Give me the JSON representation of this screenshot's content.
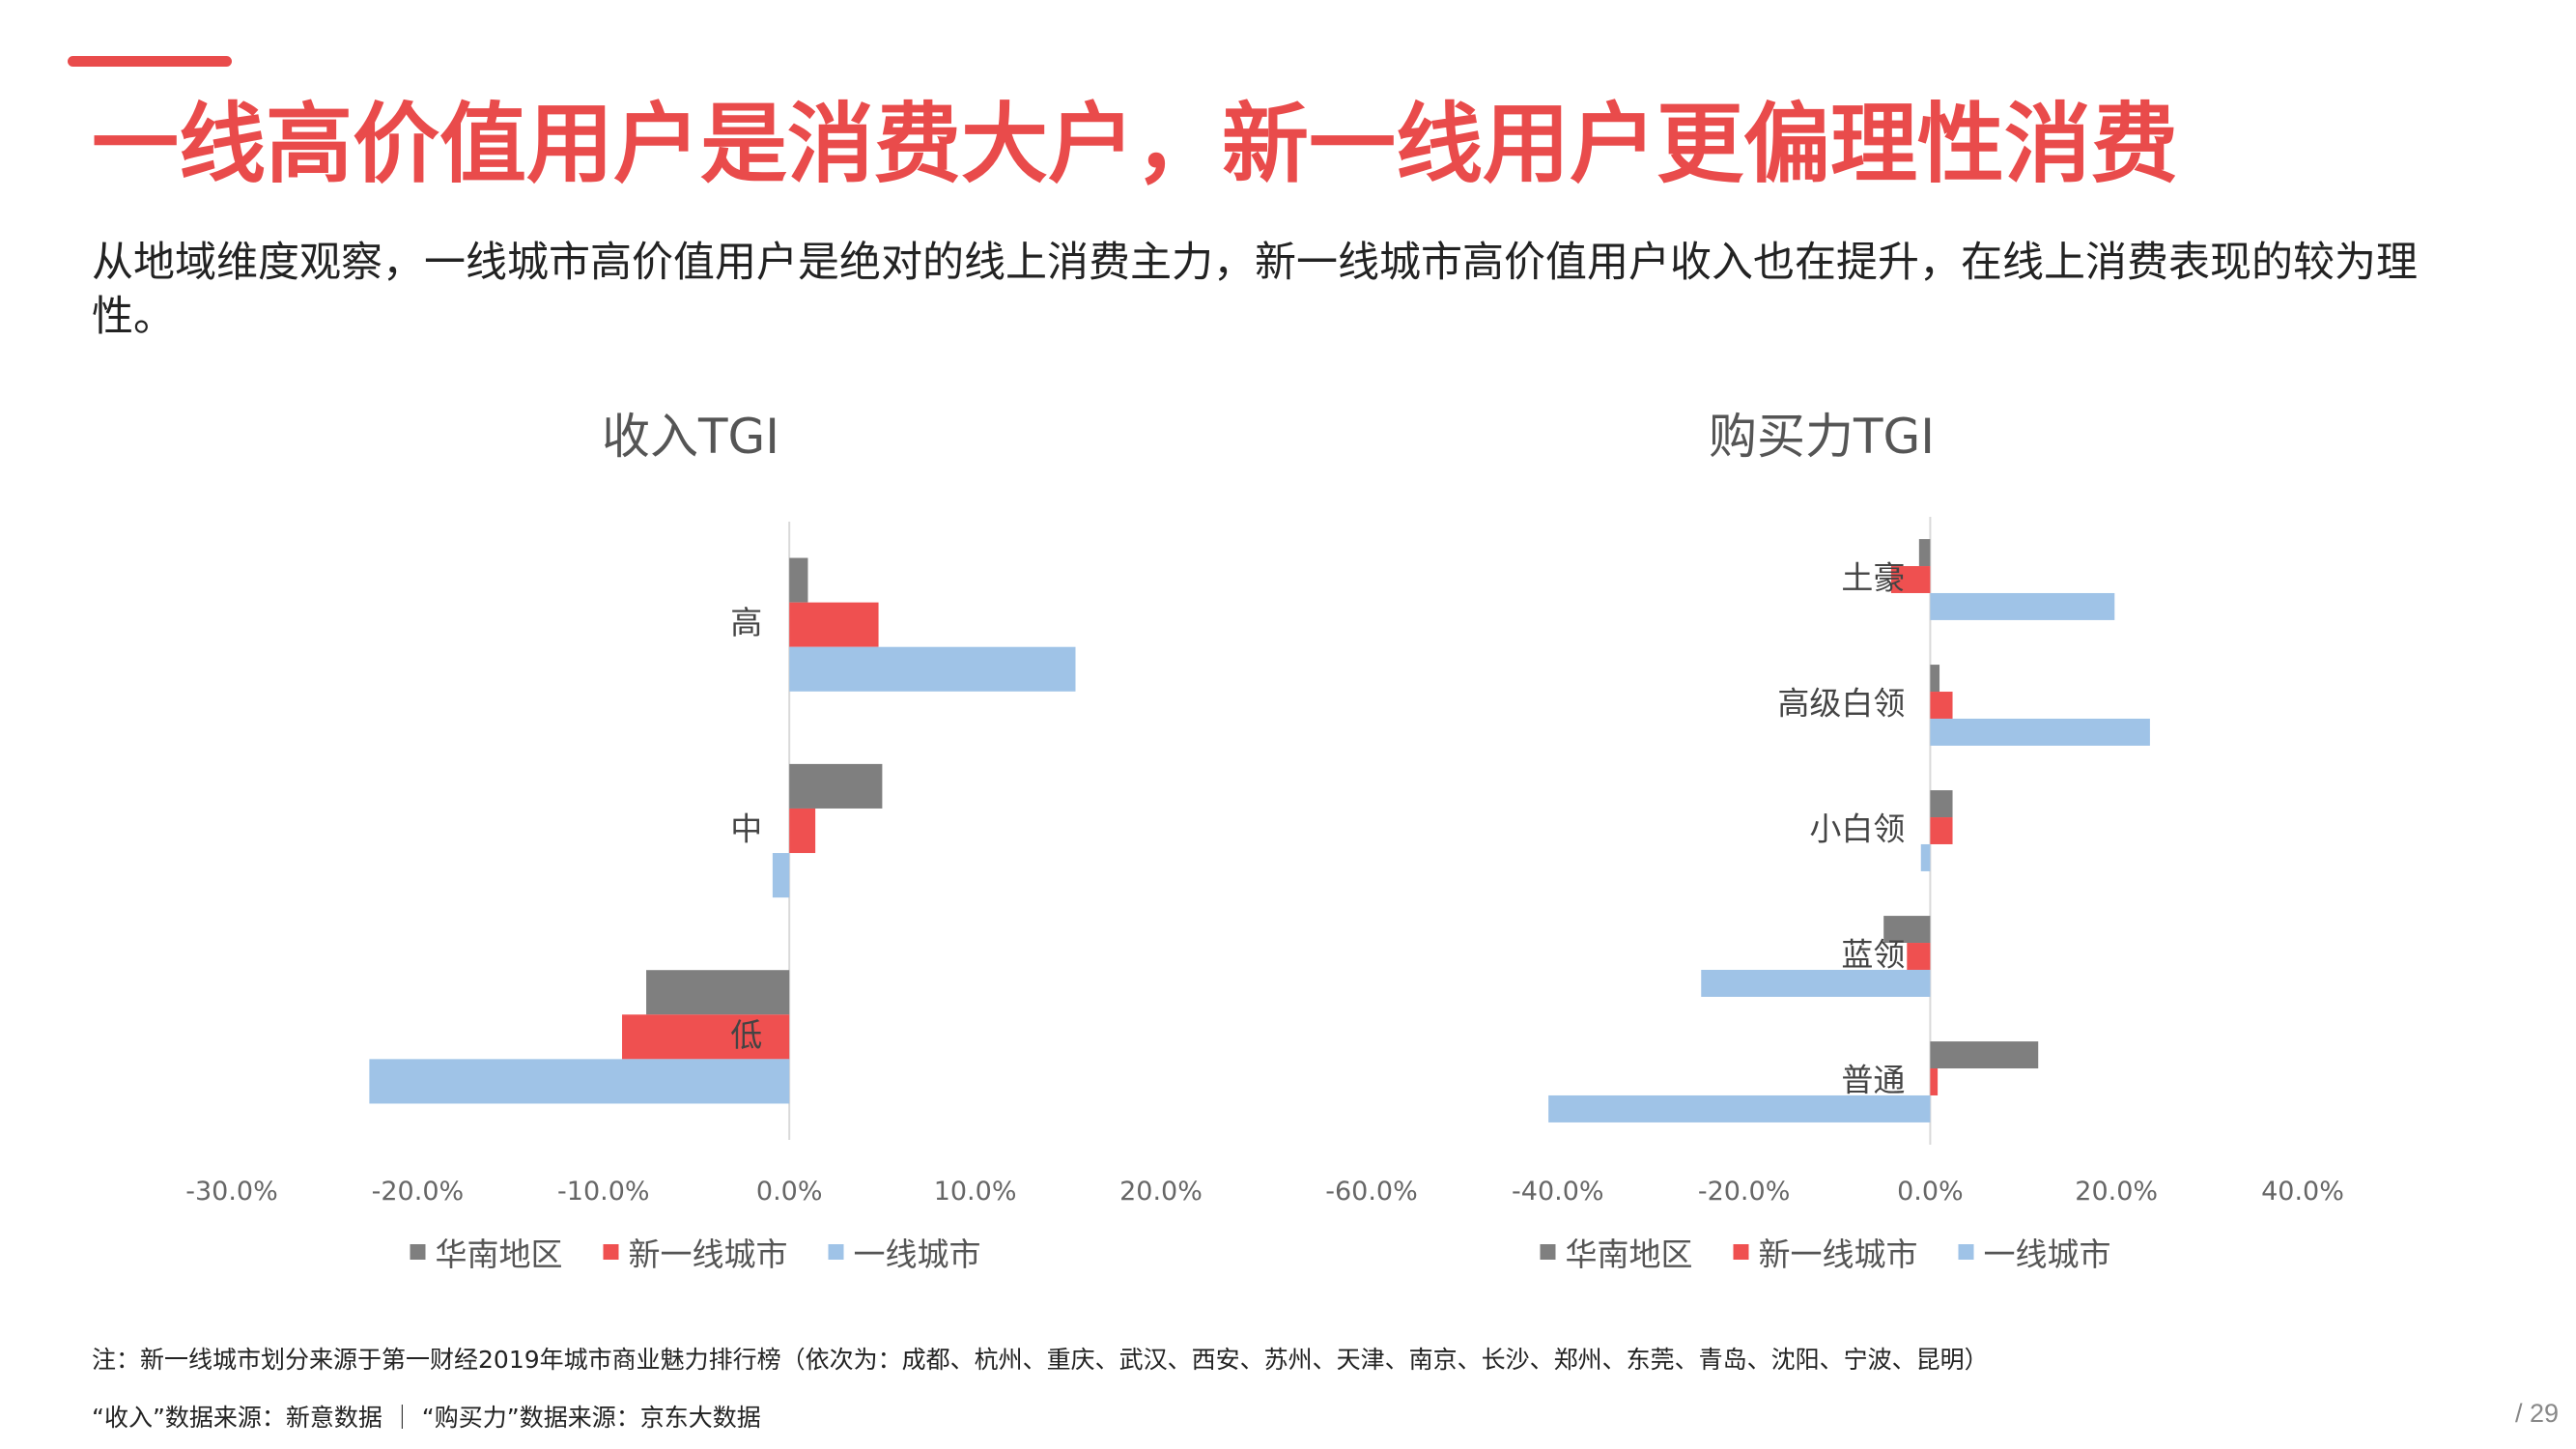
{
  "header": {
    "title": "一线高价值用户是消费大户，新一线用户更偏理性消费",
    "subtitle": "从地域维度观察，一线城市高价值用户是绝对的线上消费主力，新一线城市高价值用户收入也在提升，在线上消费表现的较为理性。"
  },
  "colors": {
    "accent": "#e94b4b",
    "huanan": "#7f7f7f",
    "xinyixian": "#ef5050",
    "yixian": "#9fc3e7"
  },
  "chart_data": [
    {
      "type": "bar",
      "orientation": "horizontal",
      "title": "收入TGI",
      "categories": [
        "高",
        "中",
        "低"
      ],
      "series": [
        {
          "name": "华南地区",
          "values": [
            1.0,
            5.0,
            -7.7
          ]
        },
        {
          "name": "新一线城市",
          "values": [
            4.8,
            1.4,
            -9.0
          ]
        },
        {
          "name": "一线城市",
          "values": [
            15.4,
            -0.9,
            -22.6
          ]
        }
      ],
      "xlim": [
        -30,
        20
      ],
      "ticks": [
        "-30.0%",
        "-20.0%",
        "-10.0%",
        "0.0%",
        "10.0%",
        "20.0%"
      ],
      "tick_values": [
        -30,
        -20,
        -10,
        0,
        10,
        20
      ],
      "legend": [
        "华南地区",
        "新一线城市",
        "一线城市"
      ],
      "legend_position": "bottom"
    },
    {
      "type": "bar",
      "orientation": "horizontal",
      "title": "购买力TGI",
      "categories": [
        "土豪",
        "高级白领",
        "小白领",
        "蓝领",
        "普通"
      ],
      "series": [
        {
          "name": "华南地区",
          "values": [
            -1.2,
            1.0,
            2.4,
            -5.0,
            11.6
          ]
        },
        {
          "name": "新一线城市",
          "values": [
            -4.2,
            2.4,
            2.4,
            -2.5,
            0.8
          ]
        },
        {
          "name": "一线城市",
          "values": [
            19.8,
            23.6,
            -1.0,
            -24.6,
            -41.0
          ]
        }
      ],
      "xlim": [
        -60,
        40
      ],
      "ticks": [
        "-60.0%",
        "-40.0%",
        "-20.0%",
        "0.0%",
        "20.0%",
        "40.0%"
      ],
      "tick_values": [
        -60,
        -40,
        -20,
        0,
        20,
        40
      ],
      "legend": [
        "华南地区",
        "新一线城市",
        "一线城市"
      ],
      "legend_position": "bottom"
    }
  ],
  "footer": {
    "note": "注：新一线城市划分来源于第一财经2019年城市商业魅力排行榜（依次为：成都、杭州、重庆、武汉、西安、苏州、天津、南京、长沙、郑州、东莞、青岛、沈阳、宁波、昆明）",
    "source": "“收入”数据来源：新意数据 ｜ “购买力”数据来源：京东大数据",
    "page_number": "/ 29"
  }
}
